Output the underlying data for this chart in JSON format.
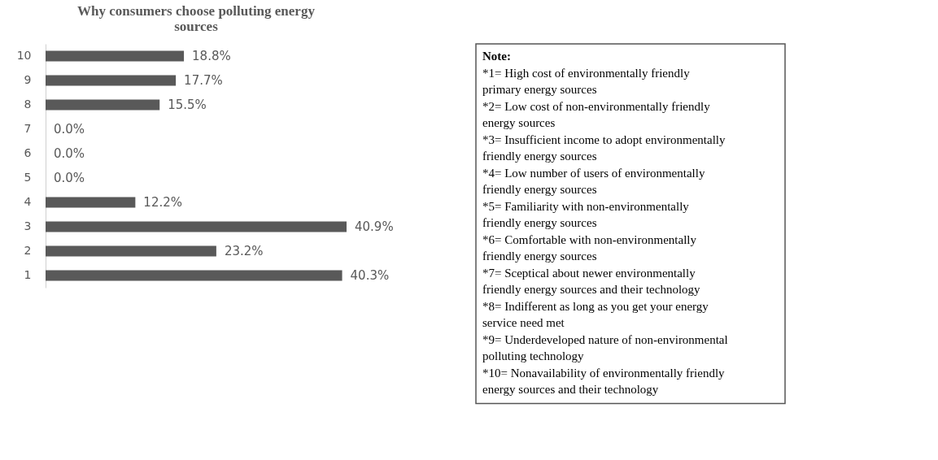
{
  "chart_data": {
    "type": "bar",
    "orientation": "horizontal",
    "title": "Why consumers choose polluting energy sources",
    "categories": [
      "10",
      "9",
      "8",
      "7",
      "6",
      "5",
      "4",
      "3",
      "2",
      "1"
    ],
    "values": [
      18.8,
      17.7,
      15.5,
      0.0,
      0.0,
      0.0,
      12.2,
      40.9,
      23.2,
      40.3
    ],
    "value_labels": [
      "18.8%",
      "17.7%",
      "15.5%",
      "0.0%",
      "0.0%",
      "0.0%",
      "12.2%",
      "40.9%",
      "23.2%",
      "40.3%"
    ],
    "color": "#595959",
    "grid": false,
    "tick_labels": "y",
    "annotations": [
      "Note:",
      "*1= High cost of environmentally friendly primary energy sources",
      "*2= Low cost of non-environmentally friendly energy sources",
      "*3= Insufficient income to adopt environmentally friendly energy sources",
      "*4= Low number of users of environmentally friendly energy sources",
      "*5= Familiarity with non-environmentally friendly energy sources",
      "*6= Comfortable with non-environmentally friendly energy sources",
      "*7= Sceptical about newer environmentally friendly energy sources and their technology",
      "*8= Indifferent as long as you get your energy service need met",
      "*9= Underdeveloped nature of non-environmental polluting technology",
      "*10= Nonavailability of environmentally friendly energy sources and their technology"
    ]
  }
}
